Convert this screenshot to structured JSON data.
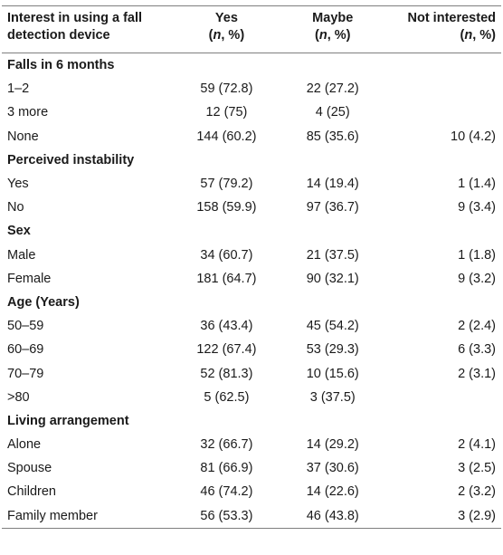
{
  "header": {
    "col0_line1": "Interest in using a fall",
    "col0_line2": "detection device",
    "col1_title": "Yes",
    "col2_title": "Maybe",
    "col3_title": "Not interested",
    "sub_n": "n",
    "sub_rest": ", %)",
    "sub_open": "("
  },
  "sections": [
    {
      "title": "Falls in 6 months",
      "rows": [
        {
          "label": "1–2",
          "yes": "59 (72.8)",
          "maybe": "22 (27.2)",
          "not": ""
        },
        {
          "label": "3 more",
          "yes": "12 (75)",
          "maybe": "4 (25)",
          "not": ""
        },
        {
          "label": "None",
          "yes": "144 (60.2)",
          "maybe": "85 (35.6)",
          "not": "10 (4.2)"
        }
      ]
    },
    {
      "title": "Perceived instability",
      "rows": [
        {
          "label": "Yes",
          "yes": "57 (79.2)",
          "maybe": "14 (19.4)",
          "not": "1 (1.4)"
        },
        {
          "label": "No",
          "yes": "158 (59.9)",
          "maybe": "97 (36.7)",
          "not": "9 (3.4)"
        }
      ]
    },
    {
      "title": "Sex",
      "rows": [
        {
          "label": "Male",
          "yes": "34 (60.7)",
          "maybe": "21 (37.5)",
          "not": "1 (1.8)"
        },
        {
          "label": "Female",
          "yes": "181 (64.7)",
          "maybe": "90 (32.1)",
          "not": "9 (3.2)"
        }
      ]
    },
    {
      "title": "Age (Years)",
      "rows": [
        {
          "label": "50–59",
          "yes": "36 (43.4)",
          "maybe": "45 (54.2)",
          "not": "2 (2.4)"
        },
        {
          "label": "60–69",
          "yes": "122 (67.4)",
          "maybe": "53 (29.3)",
          "not": "6 (3.3)"
        },
        {
          "label": "70–79",
          "yes": "52 (81.3)",
          "maybe": "10 (15.6)",
          "not": "2 (3.1)"
        },
        {
          "label": ">80",
          "yes": "5 (62.5)",
          "maybe": "3 (37.5)",
          "not": ""
        }
      ]
    },
    {
      "title": "Living arrangement",
      "rows": [
        {
          "label": "Alone",
          "yes": "32 (66.7)",
          "maybe": "14 (29.2)",
          "not": "2 (4.1)"
        },
        {
          "label": "Spouse",
          "yes": "81 (66.9)",
          "maybe": "37 (30.6)",
          "not": "3 (2.5)"
        },
        {
          "label": "Children",
          "yes": "46 (74.2)",
          "maybe": "14 (22.6)",
          "not": "2 (3.2)"
        },
        {
          "label": "Family member",
          "yes": "56 (53.3)",
          "maybe": "46 (43.8)",
          "not": "3 (2.9)"
        }
      ]
    }
  ]
}
